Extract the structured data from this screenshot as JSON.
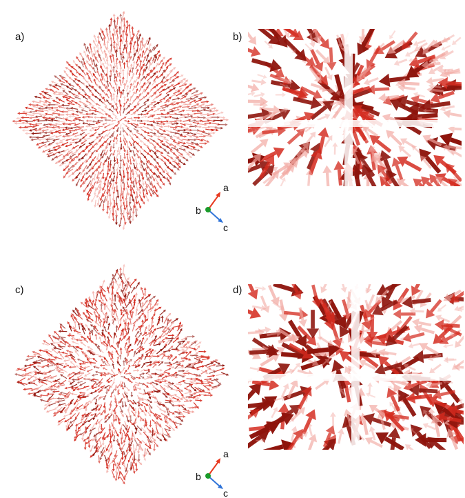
{
  "panels": [
    {
      "label": "a)"
    },
    {
      "label": "b)"
    },
    {
      "label": "c)"
    },
    {
      "label": "d)"
    }
  ],
  "axes_triads": [
    {
      "a": "a",
      "b": "b",
      "c": "c"
    },
    {
      "a": "a",
      "b": "b",
      "c": "c"
    }
  ],
  "colors": {
    "arrow": "#d42a1e",
    "arrow_dark": "#8e140c",
    "arrow_light": "#f2a7a0",
    "axis_a": "#e8391f",
    "axis_c": "#2f73d8",
    "axis_origin": "#1a9b2a"
  }
}
